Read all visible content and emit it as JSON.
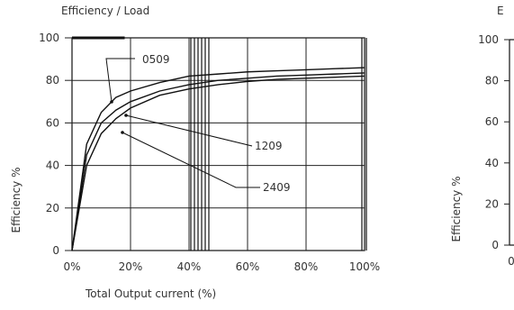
{
  "chart_data": [
    {
      "type": "line",
      "title": "Efficiency / Load",
      "xlabel": "Total Output current (%)",
      "ylabel": "Efficiency %",
      "xlim": [
        0,
        100
      ],
      "ylim": [
        0,
        100
      ],
      "x_ticks": [
        0,
        20,
        40,
        60,
        80,
        100
      ],
      "x_tick_labels": [
        "0%",
        "20%",
        "40%",
        "60%",
        "80%",
        "100%"
      ],
      "y_ticks": [
        0,
        20,
        40,
        60,
        80,
        100
      ],
      "y_tick_labels": [
        "0",
        "20",
        "40",
        "60",
        "80",
        "100"
      ],
      "grid": true,
      "series": [
        {
          "name": "0509",
          "x": [
            0,
            5,
            10,
            15,
            20,
            30,
            40,
            50,
            60,
            70,
            80,
            90,
            100
          ],
          "y": [
            0,
            50,
            65,
            72,
            75,
            79,
            82,
            83,
            84,
            84.5,
            85,
            85.5,
            86
          ]
        },
        {
          "name": "1209",
          "x": [
            0,
            5,
            10,
            15,
            20,
            30,
            40,
            50,
            60,
            70,
            80,
            90,
            100
          ],
          "y": [
            0,
            45,
            60,
            66,
            70,
            75,
            78,
            80,
            81,
            82,
            82.5,
            83,
            83.5
          ]
        },
        {
          "name": "2409",
          "x": [
            0,
            5,
            10,
            15,
            20,
            30,
            40,
            50,
            60,
            70,
            80,
            90,
            100
          ],
          "y": [
            0,
            40,
            55,
            62,
            67,
            73,
            76,
            78,
            79.5,
            80.5,
            81,
            81.5,
            82
          ]
        }
      ]
    },
    {
      "type": "line",
      "title": "E",
      "ylabel": "Efficiency %",
      "ylim": [
        0,
        100
      ],
      "y_ticks": [
        0,
        20,
        40,
        60,
        80,
        100
      ],
      "y_tick_labels": [
        "0",
        "20",
        "40",
        "60",
        "80",
        "100"
      ],
      "x_tick_labels": [
        "0"
      ],
      "series": []
    }
  ]
}
